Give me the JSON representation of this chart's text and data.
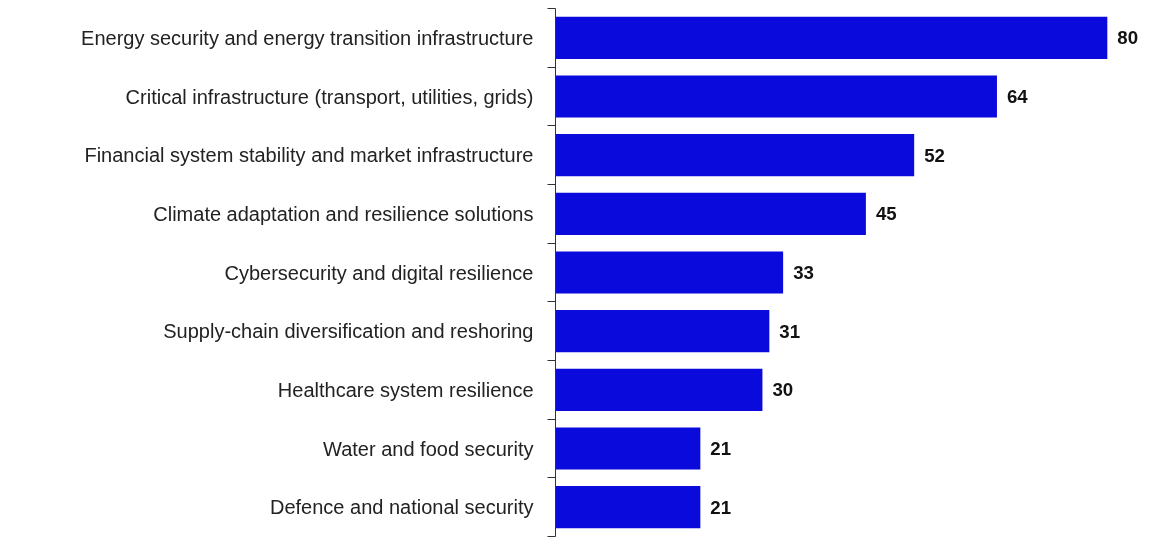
{
  "chart_data": {
    "type": "bar",
    "orientation": "horizontal",
    "data_labels": true,
    "grid": false,
    "categories": [
      "Energy security and energy transition infrastructure",
      "Critical infrastructure (transport, utilities, grids)",
      "Financial system stability and market infrastructure",
      "Climate adaptation and resilience solutions",
      "Cybersecurity and digital resilience",
      "Supply-chain diversification and reshoring",
      "Healthcare system resilience",
      "Water and food security",
      "Defence and national security"
    ],
    "values": [
      80,
      64,
      52,
      45,
      33,
      31,
      30,
      21,
      21
    ],
    "color": "#0a0adc"
  }
}
